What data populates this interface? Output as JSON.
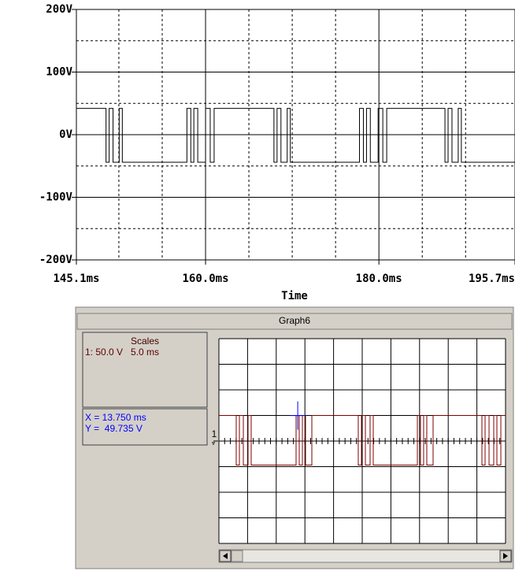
{
  "chart_data": [
    {
      "type": "line",
      "x_label": "Time",
      "xlim": [
        145.1,
        195.7
      ],
      "xticks": [
        {
          "value": 145.1,
          "label": "145.1ms"
        },
        {
          "value": 160.0,
          "label": "160.0ms"
        },
        {
          "value": 180.0,
          "label": "180.0ms"
        },
        {
          "value": 195.7,
          "label": "195.7ms"
        }
      ],
      "xminorticks": [
        150,
        155,
        165,
        170,
        175,
        185,
        190
      ],
      "ylim": [
        -200,
        200
      ],
      "yticks": [
        {
          "value": 200,
          "label": "200V"
        },
        {
          "value": 100,
          "label": "100V"
        },
        {
          "value": 0,
          "label": "0V"
        },
        {
          "value": -100,
          "label": "-100V"
        },
        {
          "value": -200,
          "label": "-200V"
        }
      ],
      "yminorticks": [
        150,
        50,
        -50,
        -150
      ],
      "grid": true,
      "series": [
        {
          "color": "#000000",
          "x": [
            145.1,
            148.52,
            148.52,
            148.88,
            148.88,
            149.33,
            149.33,
            150.04,
            150.04,
            150.4,
            150.4,
            157.85,
            157.85,
            158.3,
            158.3,
            158.65,
            158.65,
            159.1,
            159.1,
            160.0,
            160.0,
            160.54,
            160.54,
            160.99,
            160.99,
            167.89,
            167.89,
            168.25,
            168.25,
            168.7,
            168.7,
            169.42,
            169.42,
            169.78,
            169.78,
            177.76,
            177.76,
            178.21,
            178.21,
            178.57,
            178.57,
            179.01,
            179.01,
            179.91,
            179.91,
            180.45,
            180.45,
            180.9,
            180.9,
            187.62,
            187.62,
            187.98,
            187.98,
            188.43,
            188.43,
            189.15,
            189.15,
            189.51,
            189.51,
            195.7
          ],
          "values": [
            42,
            42,
            -44,
            -44,
            42,
            42,
            -44,
            -44,
            42,
            42,
            -44,
            -44,
            42,
            42,
            -44,
            -44,
            42,
            42,
            -44,
            -44,
            42,
            42,
            -44,
            -44,
            42,
            42,
            -44,
            -44,
            42,
            42,
            -44,
            -44,
            42,
            42,
            -44,
            -44,
            42,
            42,
            -44,
            -44,
            42,
            42,
            -44,
            -44,
            42,
            42,
            -44,
            -44,
            42,
            42,
            -44,
            -44,
            42,
            42,
            -44,
            -44,
            42,
            42,
            -44,
            -44
          ]
        }
      ]
    },
    {
      "type": "scope",
      "window_title": "Graph6",
      "scales_title": "Scales",
      "scales_line": "1: 50.0 V   5.0 ms",
      "channel_label": "1",
      "cursor_x": {
        "value": 13.75,
        "label": "X = 13.750 ms"
      },
      "cursor_y": {
        "value": 49.735,
        "label": "Y =  49.735 V"
      },
      "xlim": [
        0,
        50
      ],
      "xticks": [
        0,
        5,
        10,
        15,
        20,
        25,
        30,
        35,
        40,
        45,
        50
      ],
      "ylim": [
        -200,
        200
      ],
      "yticks": [
        -200,
        -150,
        -100,
        -50,
        0,
        50,
        100,
        150,
        200
      ],
      "grid": true,
      "series": [
        {
          "color": "#800000",
          "x": [
            0,
            3.02,
            3.02,
            3.57,
            3.57,
            4.26,
            4.26,
            5.08,
            5.08,
            5.63,
            5.63,
            13.46,
            13.46,
            14.01,
            14.01,
            14.56,
            14.56,
            15.11,
            15.11,
            16.21,
            16.21,
            24.31,
            24.31,
            24.86,
            24.86,
            25.55,
            25.55,
            26.37,
            26.37,
            26.92,
            26.92,
            34.62,
            34.62,
            35.16,
            35.16,
            35.71,
            35.71,
            36.26,
            36.26,
            37.36,
            37.36,
            45.88,
            45.88,
            46.43,
            46.43,
            47.12,
            47.12,
            47.94,
            47.94,
            48.49,
            48.49,
            49.18,
            49.18,
            50
          ],
          "values": [
            50,
            50,
            -47,
            -47,
            50,
            50,
            -47,
            -47,
            50,
            50,
            -47,
            -47,
            50,
            50,
            -47,
            -47,
            50,
            50,
            -47,
            -47,
            50,
            50,
            -47,
            -47,
            50,
            50,
            -47,
            -47,
            50,
            50,
            -47,
            -47,
            50,
            50,
            -47,
            -47,
            50,
            50,
            -47,
            -47,
            50,
            50,
            -47,
            -47,
            50,
            50,
            -47,
            -47,
            50,
            50,
            -47,
            -47,
            50,
            50
          ]
        }
      ]
    }
  ]
}
